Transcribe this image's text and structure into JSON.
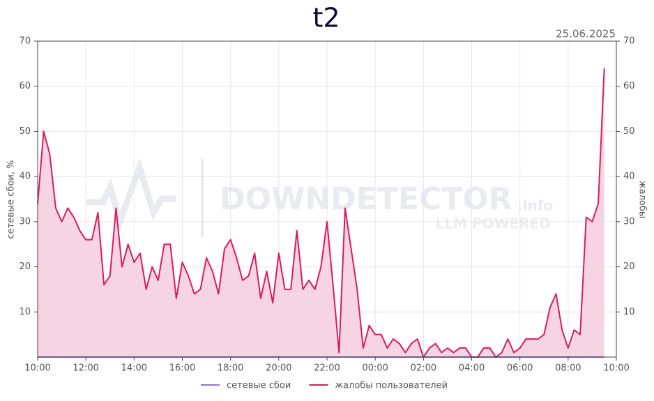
{
  "chart_data": {
    "type": "line",
    "title": "t2",
    "subtitle": "25.06.2025",
    "ylabel": "сетевые сбои, %",
    "y2label": "жалобы",
    "watermark": {
      "text": "DOWNDETECTOR",
      "suffix": ".info",
      "tagline": "LLM POWERED"
    },
    "x": [
      "10:00",
      "10:15",
      "10:30",
      "10:45",
      "11:00",
      "11:15",
      "11:30",
      "11:45",
      "12:00",
      "12:15",
      "12:30",
      "12:45",
      "13:00",
      "13:15",
      "13:30",
      "13:45",
      "14:00",
      "14:15",
      "14:30",
      "14:45",
      "15:00",
      "15:15",
      "15:30",
      "15:45",
      "16:00",
      "16:15",
      "16:30",
      "16:45",
      "17:00",
      "17:15",
      "17:30",
      "17:45",
      "18:00",
      "18:15",
      "18:30",
      "18:45",
      "19:00",
      "19:15",
      "19:30",
      "19:45",
      "20:00",
      "20:15",
      "20:30",
      "20:45",
      "21:00",
      "21:15",
      "21:30",
      "21:45",
      "22:00",
      "22:15",
      "22:30",
      "22:45",
      "23:00",
      "23:15",
      "23:30",
      "23:45",
      "00:00",
      "00:15",
      "00:30",
      "00:45",
      "01:00",
      "01:15",
      "01:30",
      "01:45",
      "02:00",
      "02:15",
      "02:30",
      "02:45",
      "03:00",
      "03:15",
      "03:30",
      "03:45",
      "04:00",
      "04:15",
      "04:30",
      "04:45",
      "05:00",
      "05:15",
      "05:30",
      "05:45",
      "06:00",
      "06:15",
      "06:30",
      "06:45",
      "07:00",
      "07:15",
      "07:30",
      "07:45",
      "08:00",
      "08:15",
      "08:30",
      "08:45",
      "09:00",
      "09:15",
      "09:30"
    ],
    "series": [
      {
        "name": "сетевые сбои",
        "color": "#9370db",
        "values": [
          0,
          0,
          0,
          0,
          0,
          0,
          0,
          0,
          0,
          0,
          0,
          0,
          0,
          0,
          0,
          0,
          0,
          0,
          0,
          0,
          0,
          0,
          0,
          0,
          0,
          0,
          0,
          0,
          0,
          0,
          0,
          0,
          0,
          0,
          0,
          0,
          0,
          0,
          0,
          0,
          0,
          0,
          0,
          0,
          0,
          0,
          0,
          0,
          0,
          0,
          0,
          0,
          0,
          0,
          0,
          0,
          0,
          0,
          0,
          0,
          0,
          0,
          0,
          0,
          0,
          0,
          0,
          0,
          0,
          0,
          0,
          0,
          0,
          0,
          0,
          0,
          0,
          0,
          0,
          0,
          0,
          0,
          0,
          0,
          0,
          0,
          0,
          0,
          0,
          0,
          0,
          0,
          0,
          0,
          0
        ]
      },
      {
        "name": "жалобы пользователей",
        "color": "#d81b60",
        "fill": "#f7d4e2",
        "axis": "y2",
        "values": [
          34,
          50,
          45,
          33,
          30,
          33,
          31,
          28,
          26,
          26,
          32,
          16,
          18,
          33,
          20,
          25,
          21,
          23,
          15,
          20,
          17,
          25,
          25,
          13,
          21,
          18,
          14,
          15,
          22,
          19,
          14,
          24,
          26,
          22,
          17,
          18,
          23,
          13,
          19,
          12,
          23,
          15,
          15,
          28,
          15,
          17,
          15,
          20,
          30,
          16,
          1,
          33,
          24,
          15,
          2,
          7,
          5,
          5,
          2,
          4,
          3,
          1,
          3,
          4,
          0,
          2,
          3,
          1,
          2,
          1,
          2,
          2,
          0,
          0,
          2,
          2,
          0,
          1,
          4,
          1,
          2,
          4,
          4,
          4,
          5,
          11,
          14,
          6,
          2,
          6,
          5,
          31,
          30,
          34,
          64
        ]
      }
    ],
    "xticks": [
      "10:00",
      "12:00",
      "14:00",
      "16:00",
      "18:00",
      "20:00",
      "22:00",
      "00:00",
      "02:00",
      "04:00",
      "06:00",
      "08:00",
      "10:00"
    ],
    "ylim": [
      0,
      70
    ],
    "yticks": [
      10,
      20,
      30,
      40,
      50,
      60,
      70
    ],
    "y2lim": [
      0,
      70
    ],
    "y2ticks": [
      10,
      20,
      30,
      40,
      50,
      60,
      70
    ],
    "grid": true,
    "legend": "bottom"
  }
}
